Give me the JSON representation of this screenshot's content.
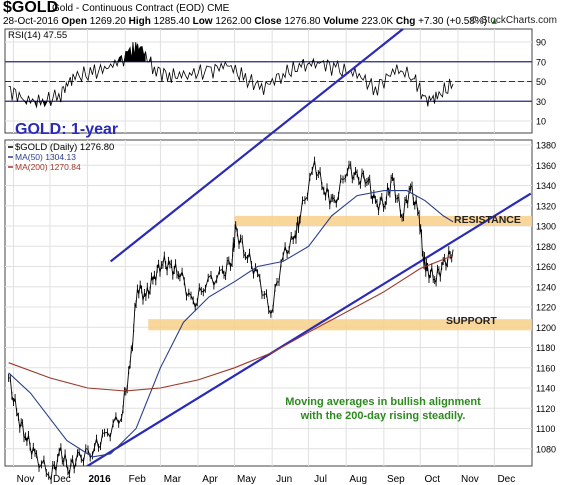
{
  "header": {
    "symbol": "$GOLD",
    "name": "Gold - Continuous Contract (EOD)",
    "exchange": "CME",
    "date": "28-Oct-2016",
    "open_label": "Open",
    "open": "1269.20",
    "high_label": "High",
    "high": "1285.40",
    "low_label": "Low",
    "low": "1262.00",
    "close_label": "Close",
    "close": "1276.80",
    "volume_label": "Volume",
    "volume": "223.0K",
    "chg_label": "Chg",
    "chg": "+7.30 (+0.58%)",
    "chg_arrow": "▲",
    "brand": "© StockCharts.com"
  },
  "colors": {
    "price": "#000000",
    "ma50": "#2b3f8c",
    "ma200": "#9b3a2a",
    "channel": "#2a2ab8",
    "band": "#f8d08a",
    "rsi_fill": "#000000",
    "annotation": "#2d8a1f",
    "title": "#2a2ab8",
    "grid": "#e0e0e0",
    "panel_bg": "#ffffff"
  },
  "chart_data": [
    {
      "type": "line",
      "title": "RSI(14) 47.55",
      "indicator": "RSI(14)",
      "value": 47.55,
      "ylim": [
        0,
        100
      ],
      "ticks": [
        10,
        30,
        50,
        70,
        90
      ],
      "reference_lines": [
        30,
        70
      ],
      "x": [
        "2015-10-28",
        "2015-11-10",
        "2015-11-25",
        "2015-12-10",
        "2015-12-20",
        "2016-01-05",
        "2016-01-20",
        "2016-02-05",
        "2016-02-12",
        "2016-02-25",
        "2016-03-10",
        "2016-03-25",
        "2016-04-10",
        "2016-04-25",
        "2016-05-10",
        "2016-05-25",
        "2016-06-10",
        "2016-06-25",
        "2016-07-10",
        "2016-07-25",
        "2016-08-10",
        "2016-08-25",
        "2016-09-10",
        "2016-09-25",
        "2016-10-05",
        "2016-10-15",
        "2016-10-28"
      ],
      "values": [
        42,
        32,
        28,
        38,
        55,
        58,
        66,
        78,
        88,
        62,
        55,
        58,
        60,
        68,
        52,
        44,
        58,
        65,
        70,
        62,
        58,
        42,
        62,
        56,
        30,
        35,
        47.55
      ],
      "grid": true
    },
    {
      "type": "line",
      "title": "GOLD: 1-year",
      "series_labels": [
        {
          "name": "$GOLD (Daily)",
          "value": "1276.80"
        },
        {
          "name": "MA(50)",
          "value": "1304.13"
        },
        {
          "name": "MA(200)",
          "value": "1270.84"
        }
      ],
      "ylim": [
        1040,
        1390
      ],
      "yticks": [
        1060,
        1080,
        1100,
        1120,
        1140,
        1160,
        1180,
        1200,
        1220,
        1240,
        1260,
        1280,
        1300,
        1320,
        1340,
        1360,
        1380
      ],
      "xticks": [
        "Nov",
        "Dec",
        "2016",
        "Feb",
        "Mar",
        "Apr",
        "May",
        "Jun",
        "Jul",
        "Aug",
        "Sep",
        "Oct",
        "Nov",
        "Dec"
      ],
      "xtick_dates": [
        "2015-11-01",
        "2015-12-01",
        "2016-01-01",
        "2016-02-01",
        "2016-03-01",
        "2016-04-01",
        "2016-05-01",
        "2016-06-01",
        "2016-07-01",
        "2016-08-01",
        "2016-09-01",
        "2016-10-01",
        "2016-11-01",
        "2016-12-01"
      ],
      "series": [
        {
          "name": "$GOLD (Daily)",
          "x": [
            "2015-10-28",
            "2015-11-05",
            "2015-11-12",
            "2015-11-20",
            "2015-12-02",
            "2015-12-10",
            "2015-12-17",
            "2015-12-25",
            "2016-01-05",
            "2016-01-15",
            "2016-01-29",
            "2016-02-05",
            "2016-02-11",
            "2016-02-18",
            "2016-02-25",
            "2016-03-03",
            "2016-03-10",
            "2016-03-17",
            "2016-03-28",
            "2016-04-07",
            "2016-04-21",
            "2016-04-29",
            "2016-05-02",
            "2016-05-10",
            "2016-05-20",
            "2016-05-31",
            "2016-06-10",
            "2016-06-20",
            "2016-06-24",
            "2016-07-06",
            "2016-07-15",
            "2016-07-22",
            "2016-08-02",
            "2016-08-10",
            "2016-08-18",
            "2016-08-25",
            "2016-09-02",
            "2016-09-08",
            "2016-09-16",
            "2016-09-23",
            "2016-09-30",
            "2016-10-04",
            "2016-10-07",
            "2016-10-14",
            "2016-10-21",
            "2016-10-28"
          ],
          "values": [
            1150,
            1110,
            1090,
            1070,
            1055,
            1075,
            1062,
            1070,
            1080,
            1090,
            1115,
            1160,
            1240,
            1230,
            1250,
            1265,
            1258,
            1255,
            1220,
            1245,
            1250,
            1270,
            1295,
            1275,
            1250,
            1215,
            1270,
            1290,
            1310,
            1360,
            1335,
            1320,
            1360,
            1345,
            1350,
            1320,
            1325,
            1345,
            1310,
            1338,
            1310,
            1265,
            1255,
            1250,
            1262,
            1276.8
          ]
        },
        {
          "name": "MA(50)",
          "x": [
            "2015-10-28",
            "2015-11-15",
            "2015-12-01",
            "2015-12-15",
            "2016-01-05",
            "2016-01-20",
            "2016-02-10",
            "2016-03-01",
            "2016-03-20",
            "2016-04-10",
            "2016-05-01",
            "2016-05-20",
            "2016-06-10",
            "2016-07-01",
            "2016-07-20",
            "2016-08-10",
            "2016-09-01",
            "2016-09-20",
            "2016-10-05",
            "2016-10-20",
            "2016-10-28"
          ],
          "values": [
            1155,
            1135,
            1110,
            1088,
            1072,
            1075,
            1100,
            1160,
            1205,
            1230,
            1245,
            1260,
            1265,
            1280,
            1310,
            1330,
            1335,
            1335,
            1325,
            1310,
            1304.13
          ]
        },
        {
          "name": "MA(200)",
          "x": [
            "2015-10-28",
            "2015-12-01",
            "2016-01-01",
            "2016-02-01",
            "2016-03-01",
            "2016-04-01",
            "2016-05-01",
            "2016-06-01",
            "2016-07-01",
            "2016-08-01",
            "2016-09-01",
            "2016-10-01",
            "2016-10-28"
          ],
          "values": [
            1165,
            1150,
            1140,
            1137,
            1140,
            1148,
            1160,
            1175,
            1195,
            1215,
            1235,
            1258,
            1270.84
          ]
        }
      ],
      "channel": {
        "upper": {
          "x": [
            "2016-01-20",
            "2016-12-31"
          ],
          "values": [
            1265,
            1595
          ]
        },
        "lower": {
          "x": [
            "2015-12-17",
            "2016-12-31"
          ],
          "values": [
            1052,
            1332
          ]
        }
      },
      "bands": [
        {
          "label": "RESISTANCE",
          "y_range": [
            1300,
            1310
          ],
          "x_start": "2016-05-01"
        },
        {
          "label": "SUPPORT",
          "y_range": [
            1197,
            1208
          ],
          "x_start": "2016-02-20"
        }
      ],
      "annotation": [
        "Moving averages in bullish alignment",
        "with the 200-day rising steadily."
      ],
      "grid": true
    }
  ]
}
